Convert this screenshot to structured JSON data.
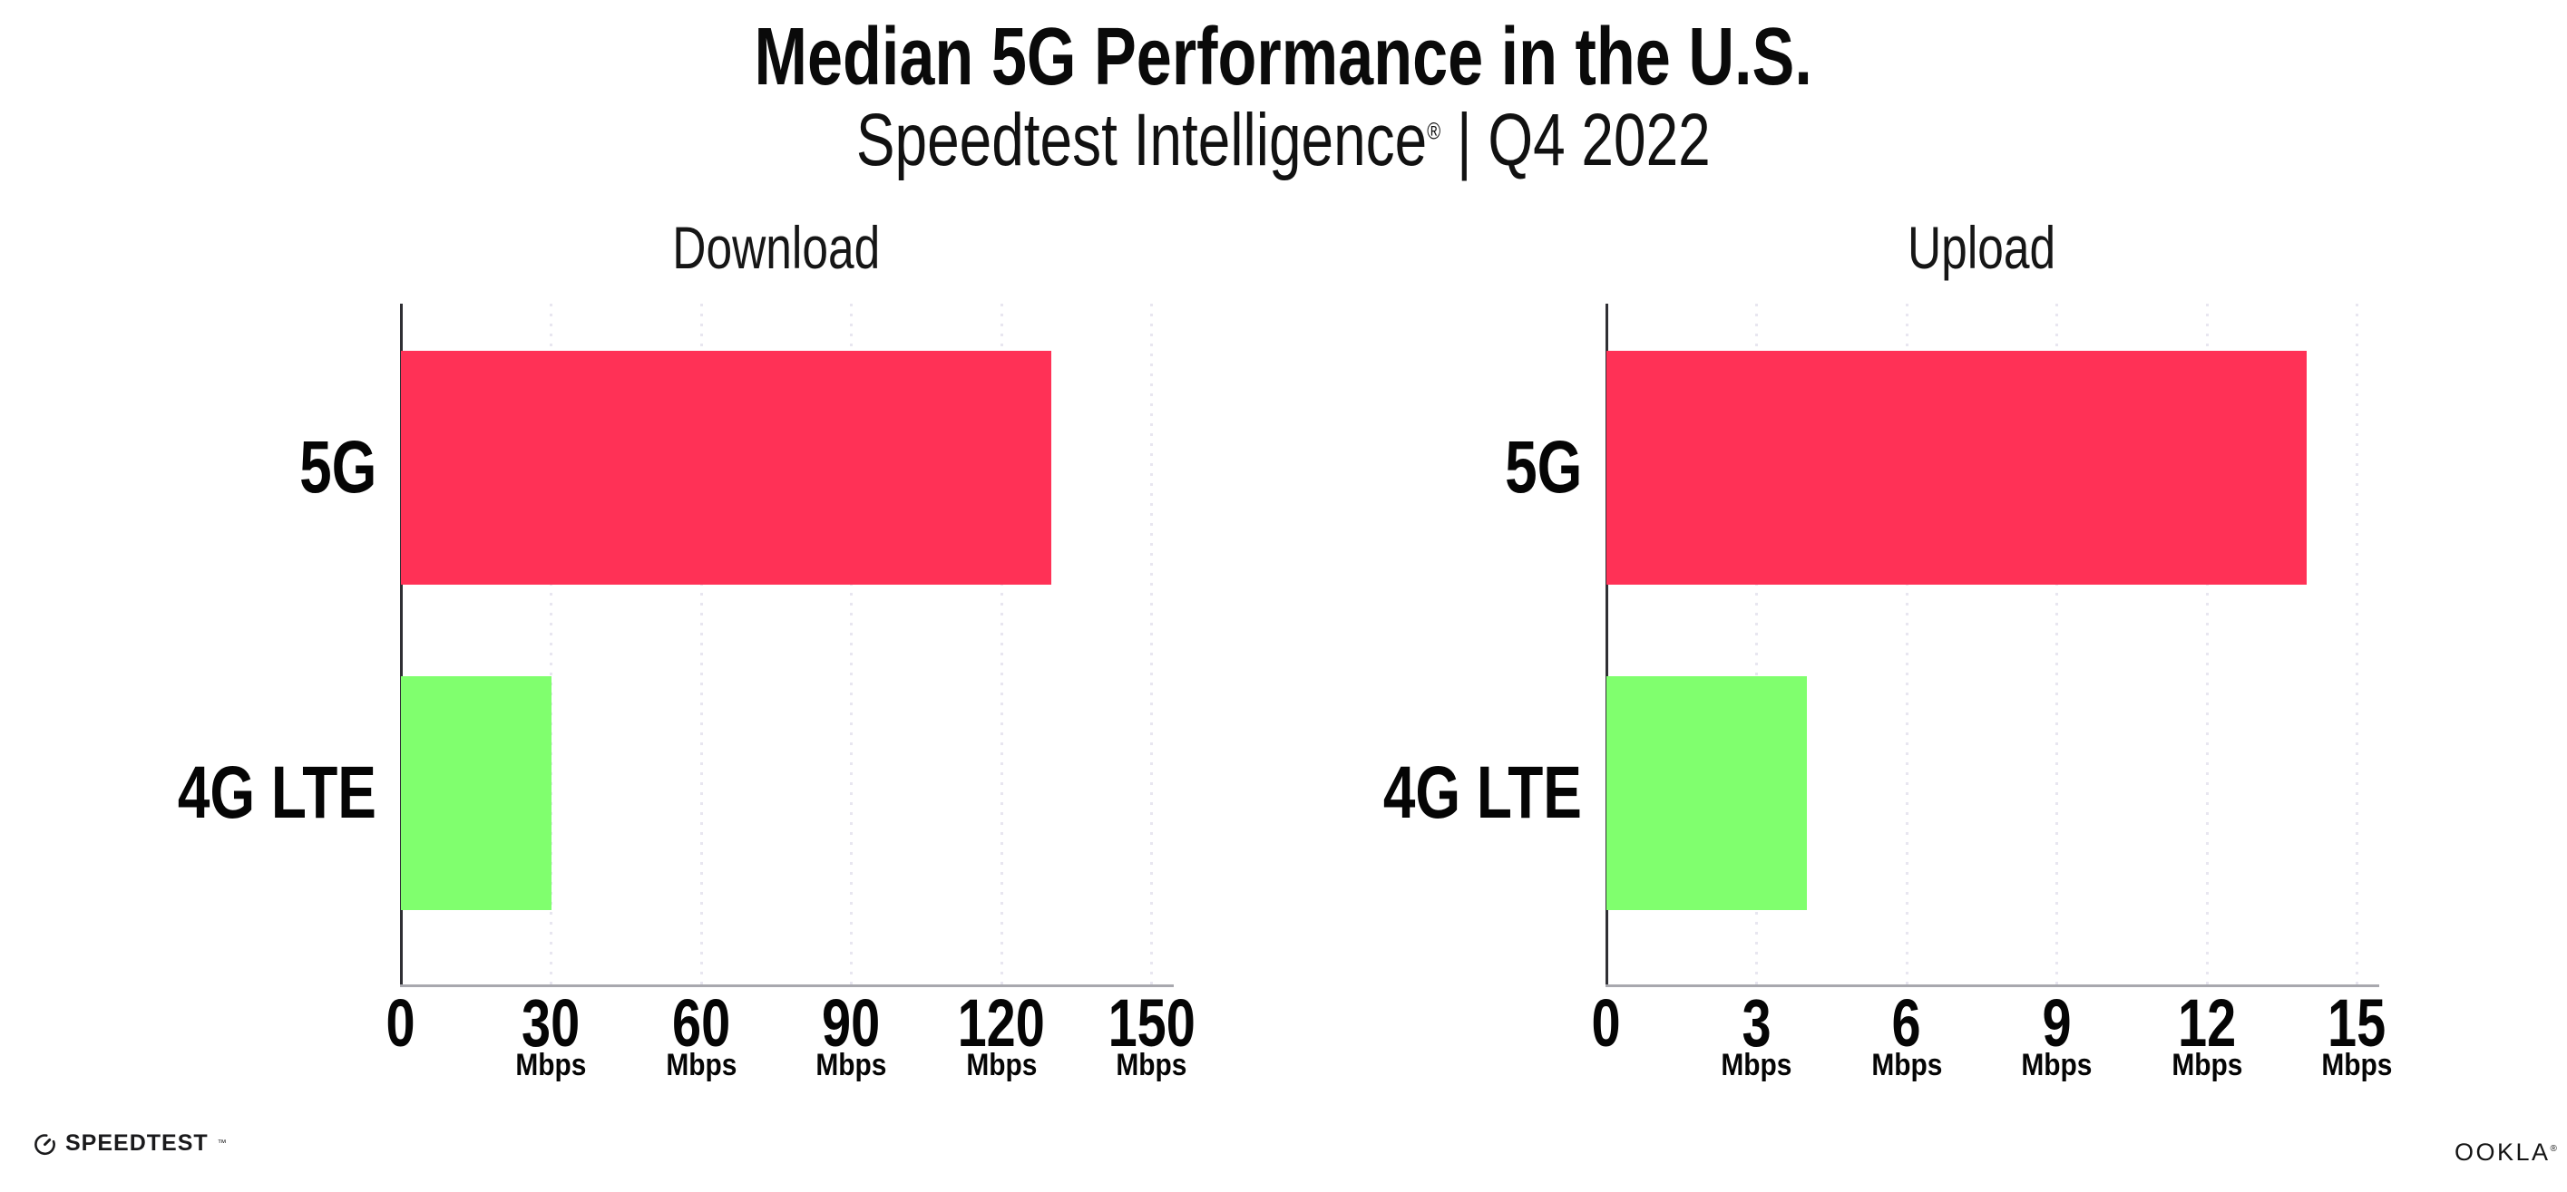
{
  "header": {
    "title": "Median 5G Performance in the U.S.",
    "subtitle_brand": "Speedtest Intelligence",
    "subtitle_reg": "®",
    "subtitle_rest": " | Q4 2022"
  },
  "colors": {
    "bar_5g": "#ff3156",
    "bar_4g_lte": "#80ff6e",
    "gridline": "#e8e6f0",
    "xaxis_line": "#a8a8ae",
    "yaxis_line": "#2f2f34",
    "text": "#050505"
  },
  "chart_data": [
    {
      "type": "bar",
      "orientation": "horizontal",
      "title": "Download",
      "categories": [
        "5G",
        "4G LTE"
      ],
      "values": [
        130,
        30
      ],
      "unit": "Mbps",
      "xlim": [
        0,
        150
      ],
      "xticks": [
        0,
        30,
        60,
        90,
        120,
        150
      ],
      "tick_unit_label": "Mbps",
      "bar_colors": [
        "#ff3156",
        "#80ff6e"
      ],
      "grid": "vertical-dotted",
      "legend": "none"
    },
    {
      "type": "bar",
      "orientation": "horizontal",
      "title": "Upload",
      "categories": [
        "5G",
        "4G LTE"
      ],
      "values": [
        14,
        4
      ],
      "unit": "Mbps",
      "xlim": [
        0,
        15
      ],
      "xticks": [
        0,
        3,
        6,
        9,
        12,
        15
      ],
      "tick_unit_label": "Mbps",
      "bar_colors": [
        "#ff3156",
        "#80ff6e"
      ],
      "grid": "vertical-dotted",
      "legend": "none"
    }
  ],
  "footer": {
    "speedtest_label": "SPEEDTEST",
    "speedtest_tm": "™",
    "ookla_label": "OOKLA",
    "ookla_reg": "®"
  }
}
